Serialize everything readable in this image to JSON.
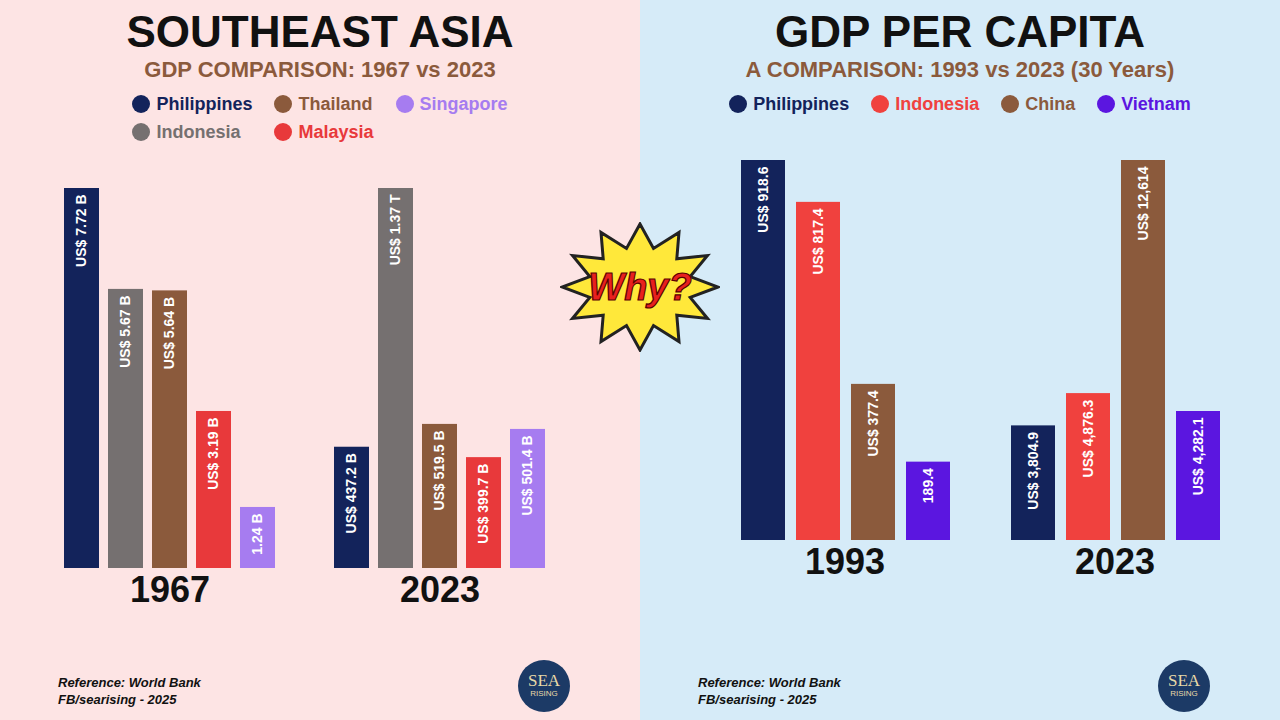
{
  "chart_data": [
    {
      "type": "bar",
      "title": "SOUTHEAST ASIA",
      "subtitle": "GDP COMPARISON: 1967 vs 2023",
      "legend": "top",
      "xlabel": "1967",
      "categories": [
        "Philippines",
        "Indonesia",
        "Thailand",
        "Malaysia",
        "Singapore"
      ],
      "values": [
        7.72,
        5.67,
        5.64,
        3.19,
        1.24
      ],
      "value_labels": [
        "US$ 7.72 B",
        "US$ 5.67 B",
        "US$ 5.64 B",
        "US$ 3.19 B",
        "1.24 B"
      ],
      "colors": [
        "#13235b",
        "#757070",
        "#8b5a3c",
        "#e8393b",
        "#a67cf0"
      ],
      "ylim": [
        0,
        7.72
      ],
      "tick_labels": false,
      "data_labels": true,
      "caption": [
        "Reference: World Bank",
        "FB/searising - 2025"
      ]
    },
    {
      "type": "bar",
      "xlabel": "2023",
      "categories": [
        "Philippines",
        "Indonesia",
        "Thailand",
        "Malaysia",
        "Singapore"
      ],
      "values": [
        437.2,
        1370,
        519.5,
        399.7,
        501.4
      ],
      "value_labels": [
        "US$ 437.2 B",
        "US$ 1.37 T",
        "US$ 519.5 B",
        "US$ 399.7 B",
        "US$ 501.4 B"
      ],
      "colors": [
        "#13235b",
        "#757070",
        "#8b5a3c",
        "#e8393b",
        "#a67cf0"
      ],
      "ylim": [
        0,
        1370
      ],
      "tick_labels": false,
      "data_labels": true
    },
    {
      "type": "bar",
      "title": "GDP PER CAPITA",
      "subtitle": "A COMPARISON: 1993 vs 2023 (30 Years)",
      "legend": "top",
      "xlabel": "1993",
      "categories": [
        "Philippines",
        "Indonesia",
        "China",
        "Vietnam"
      ],
      "values": [
        918.6,
        817.4,
        377.4,
        189.4
      ],
      "value_labels": [
        "US$ 918.6",
        "US$ 817.4",
        "US$ 377.4",
        "189.4"
      ],
      "colors": [
        "#13235b",
        "#f0413e",
        "#8b5a3c",
        "#5b16e0"
      ],
      "ylim": [
        0,
        918.6
      ],
      "tick_labels": false,
      "data_labels": true,
      "caption": [
        "Reference: World Bank",
        "FB/searising - 2025"
      ]
    },
    {
      "type": "bar",
      "xlabel": "2023",
      "categories": [
        "Philippines",
        "Indonesia",
        "China",
        "Vietnam"
      ],
      "values": [
        3804.9,
        4876.3,
        12614,
        4282.1
      ],
      "value_labels": [
        "US$ 3,804.9",
        "US$ 4,876.3",
        "US$ 12,614",
        "US$ 4,282.1"
      ],
      "colors": [
        "#13235b",
        "#f0413e",
        "#8b5a3c",
        "#5b16e0"
      ],
      "ylim": [
        0,
        12614
      ],
      "tick_labels": false,
      "data_labels": true
    }
  ],
  "annotation": "Why?",
  "logo": [
    "SEA",
    "RISING"
  ]
}
